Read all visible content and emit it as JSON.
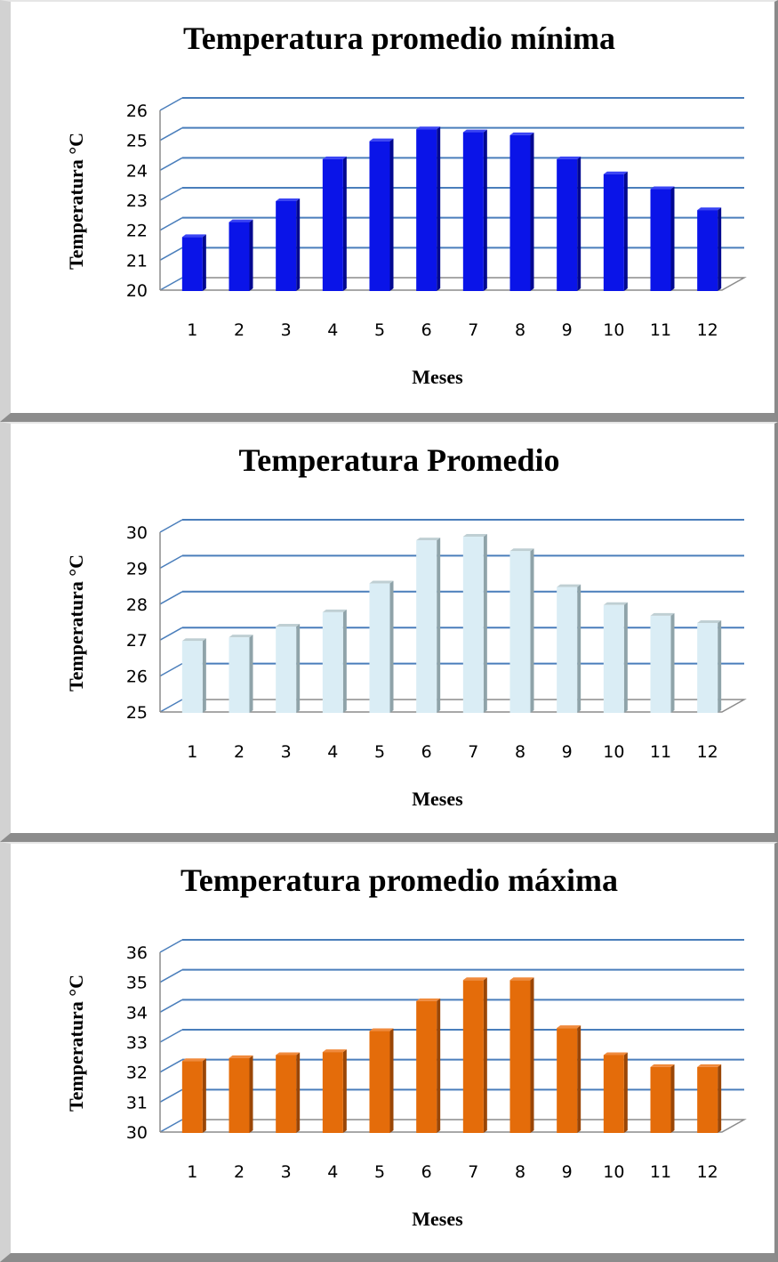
{
  "chart_data": [
    {
      "type": "bar",
      "title": "Temperatura promedio mínima",
      "xlabel": "Meses",
      "ylabel": "Temperatura °C",
      "categories": [
        "1",
        "2",
        "3",
        "4",
        "5",
        "6",
        "7",
        "8",
        "9",
        "10",
        "11",
        "12"
      ],
      "values": [
        21.8,
        22.3,
        23.0,
        24.4,
        25.0,
        25.4,
        25.3,
        25.2,
        24.4,
        23.9,
        23.4,
        22.7
      ],
      "ylim": [
        20,
        26
      ],
      "yticks": [
        "20",
        "21",
        "22",
        "23",
        "24",
        "25",
        "26"
      ],
      "grid": true,
      "bar_style": "3d",
      "colors": {
        "front": "#0a14e8",
        "side": "#020890",
        "top": "#3a44f4"
      }
    },
    {
      "type": "bar",
      "title": "Temperatura Promedio",
      "xlabel": "Meses",
      "ylabel": "Temperatura °C",
      "categories": [
        "1",
        "2",
        "3",
        "4",
        "5",
        "6",
        "7",
        "8",
        "9",
        "10",
        "11",
        "12"
      ],
      "values": [
        27.0,
        27.1,
        27.4,
        27.8,
        28.6,
        29.8,
        29.9,
        29.5,
        28.5,
        28.0,
        27.7,
        27.5
      ],
      "ylim": [
        25,
        30
      ],
      "yticks": [
        "25",
        "26",
        "27",
        "28",
        "29",
        "30"
      ],
      "grid": true,
      "bar_style": "3d",
      "colors": {
        "front": "#daedf5",
        "side": "#8fa3a9",
        "top": "#bfcfd3"
      }
    },
    {
      "type": "bar",
      "title": "Temperatura promedio máxima",
      "xlabel": "Meses",
      "ylabel": "Temperatura °C",
      "categories": [
        "1",
        "2",
        "3",
        "4",
        "5",
        "6",
        "7",
        "8",
        "9",
        "10",
        "11",
        "12"
      ],
      "values": [
        32.4,
        32.5,
        32.6,
        32.7,
        33.4,
        34.4,
        35.1,
        35.1,
        33.5,
        32.6,
        32.2,
        32.2
      ],
      "ylim": [
        30,
        36
      ],
      "yticks": [
        "30",
        "31",
        "32",
        "33",
        "34",
        "35",
        "36"
      ],
      "grid": true,
      "bar_style": "3d",
      "colors": {
        "front": "#e46c0a",
        "side": "#9a4606",
        "top": "#f08a3c"
      }
    }
  ]
}
